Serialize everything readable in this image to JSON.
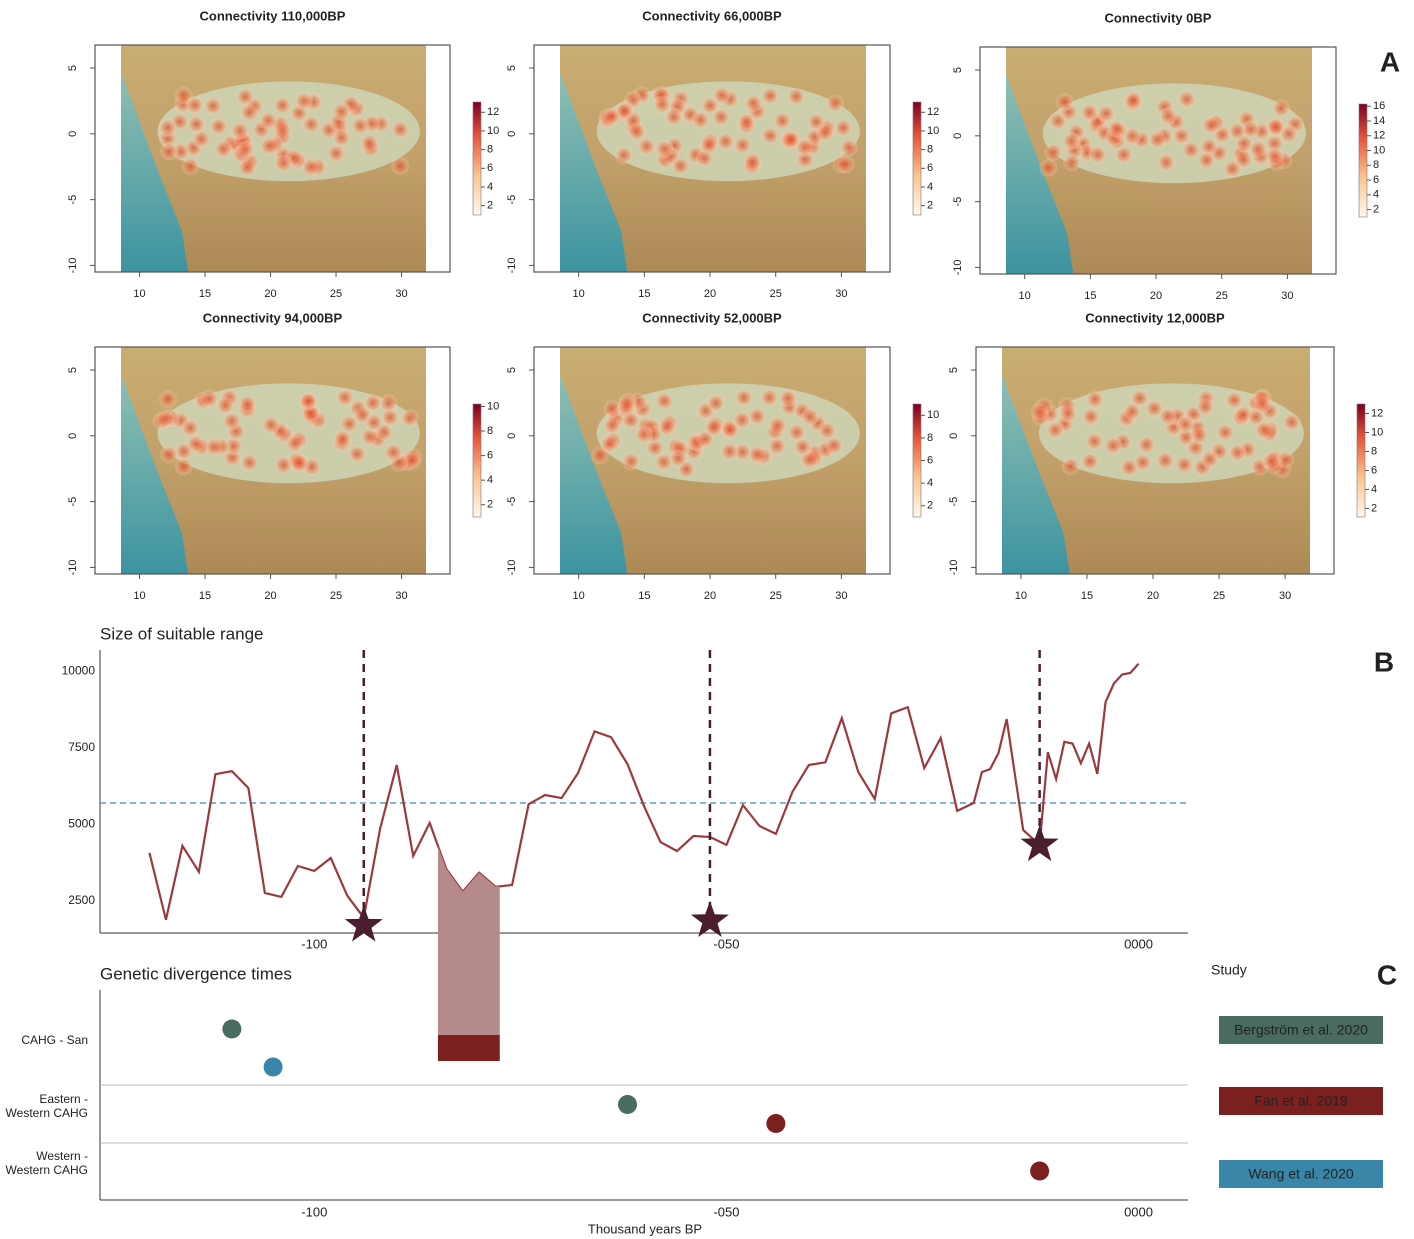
{
  "panel_labels": [
    "A",
    "B",
    "C"
  ],
  "chart_data": [
    {
      "type": "map",
      "title": "Connectivity 110,000BP",
      "xlim": [
        6.6,
        33.7
      ],
      "ylim": [
        -10.5,
        6.75
      ],
      "xticks": [
        10,
        15,
        20,
        25,
        30
      ],
      "yticks": [
        5,
        0,
        -5,
        -10
      ],
      "colorbar_lim": [
        1,
        13.1
      ],
      "colorbar_ticks": [
        2,
        4,
        6,
        8,
        10,
        12
      ]
    },
    {
      "type": "map",
      "title": "Connectivity 66,000BP",
      "xlim": [
        6.6,
        33.7
      ],
      "ylim": [
        -10.5,
        6.75
      ],
      "xticks": [
        10,
        15,
        20,
        25,
        30
      ],
      "yticks": [
        5,
        0,
        -5,
        -10
      ],
      "colorbar_lim": [
        1,
        13.1
      ],
      "colorbar_ticks": [
        2,
        4,
        6,
        8,
        10,
        12
      ]
    },
    {
      "type": "map",
      "title": "Connectivity 0BP",
      "xlim": [
        6.6,
        33.7
      ],
      "ylim": [
        -10.5,
        6.75
      ],
      "xticks": [
        10,
        15,
        20,
        25,
        30
      ],
      "yticks": [
        5,
        0,
        -5,
        -10
      ],
      "colorbar_lim": [
        1,
        16.3
      ],
      "colorbar_ticks": [
        2,
        4,
        6,
        8,
        10,
        12,
        14,
        16
      ]
    },
    {
      "type": "map",
      "title": "Connectivity 94,000BP",
      "xlim": [
        6.6,
        33.7
      ],
      "ylim": [
        -10.5,
        6.75
      ],
      "xticks": [
        10,
        15,
        20,
        25,
        30
      ],
      "yticks": [
        5,
        0,
        -5,
        -10
      ],
      "colorbar_lim": [
        1,
        10.2
      ],
      "colorbar_ticks": [
        2,
        4,
        6,
        8,
        10
      ]
    },
    {
      "type": "map",
      "title": "Connectivity 52,000BP",
      "xlim": [
        6.6,
        33.7
      ],
      "ylim": [
        -10.5,
        6.75
      ],
      "xticks": [
        10,
        15,
        20,
        25,
        30
      ],
      "yticks": [
        5,
        0,
        -5,
        -10
      ],
      "colorbar_lim": [
        1,
        11
      ],
      "colorbar_ticks": [
        2,
        4,
        6,
        8,
        10
      ]
    },
    {
      "type": "map",
      "title": "Connectivity 12,000BP",
      "xlim": [
        6.6,
        33.7
      ],
      "ylim": [
        -10.5,
        6.75
      ],
      "xticks": [
        10,
        15,
        20,
        25,
        30
      ],
      "yticks": [
        5,
        0,
        -5,
        -10
      ],
      "colorbar_lim": [
        1.1,
        13
      ],
      "colorbar_ticks": [
        2,
        4,
        6,
        8,
        10,
        12
      ]
    },
    {
      "type": "line",
      "title": "Size of suitable range",
      "x": [
        -120,
        -118,
        -116,
        -114,
        -112,
        -110,
        -108,
        -106,
        -104,
        -102,
        -100,
        -98,
        -96,
        -94,
        -92,
        -90,
        -88,
        -86,
        -84,
        -82,
        -80,
        -78,
        -76,
        -74,
        -72,
        -70,
        -68,
        -66,
        -64,
        -62,
        -60,
        -58,
        -56,
        -54,
        -52,
        -50,
        -48,
        -46,
        -44,
        -42,
        -40,
        -38,
        -36,
        -34,
        -32,
        -30,
        -28,
        -26,
        -24,
        -22,
        -20,
        -19,
        -18,
        -17,
        -16,
        -14,
        -12,
        -11,
        -10,
        -9,
        -8,
        -7,
        -6,
        -5,
        -4,
        -3,
        -2,
        -1,
        0
      ],
      "values": [
        4068,
        1884,
        4300,
        3450,
        6640,
        6740,
        6190,
        2760,
        2630,
        3640,
        3480,
        3900,
        2670,
        1950,
        4880,
        6940,
        3970,
        5050,
        3550,
        2800,
        3420,
        2960,
        3020,
        5660,
        5960,
        5860,
        6680,
        8040,
        7850,
        6970,
        5600,
        4420,
        4130,
        4620,
        4590,
        4330,
        5630,
        4950,
        4690,
        6060,
        6940,
        7030,
        8470,
        6710,
        5830,
        8630,
        8830,
        6840,
        7820,
        5440,
        5700,
        6710,
        6810,
        7330,
        8440,
        4820,
        4330,
        7360,
        6480,
        7700,
        7640,
        7000,
        7640,
        6650,
        9000,
        9600,
        9900,
        9950,
        10250
      ],
      "color": "#9b3a3e",
      "threshold": 5700,
      "threshold_color": "#5b9cc4",
      "markers": {
        "x": [
          -94,
          -52,
          -12
        ],
        "values": [
          1700,
          1850,
          4330
        ],
        "color": "#4a1e2e"
      },
      "xlim": [
        -126,
        6
      ],
      "ylim": [
        1450,
        10700
      ],
      "xticks": [
        -100,
        {
          "value": -50,
          "label": "-050"
        },
        {
          "value": 0,
          "label": "0000"
        }
      ],
      "yticks": [
        2500,
        5000,
        7500,
        10000
      ]
    },
    {
      "type": "dot",
      "title": "Genetic divergence times",
      "xlabel": "Thousand years BP",
      "categories": [
        "CAHG - San",
        "Eastern -\nWestern CAHG",
        "Western -\nWestern CAHG"
      ],
      "series": [
        {
          "name": "Bergström et al. 2020",
          "color": "#4a6b62",
          "values": [
            -110,
            -62,
            null
          ]
        },
        {
          "name": "Fan et al. 2019",
          "color": "#7b1f1f",
          "values": [
            null,
            -44,
            -12
          ],
          "ranges": [
            [
              -85,
              -77.5
            ],
            null,
            null
          ],
          "range_fill": "#b58a8a"
        },
        {
          "name": "Wang et al. 2020",
          "color": "#3a86a8",
          "values": [
            -105,
            null,
            null
          ]
        }
      ],
      "legend_title": "Study",
      "xlim": [
        -126,
        6
      ],
      "xticks": [
        -100,
        {
          "value": -50,
          "label": "-050"
        },
        {
          "value": 0,
          "label": "0000"
        }
      ]
    }
  ]
}
